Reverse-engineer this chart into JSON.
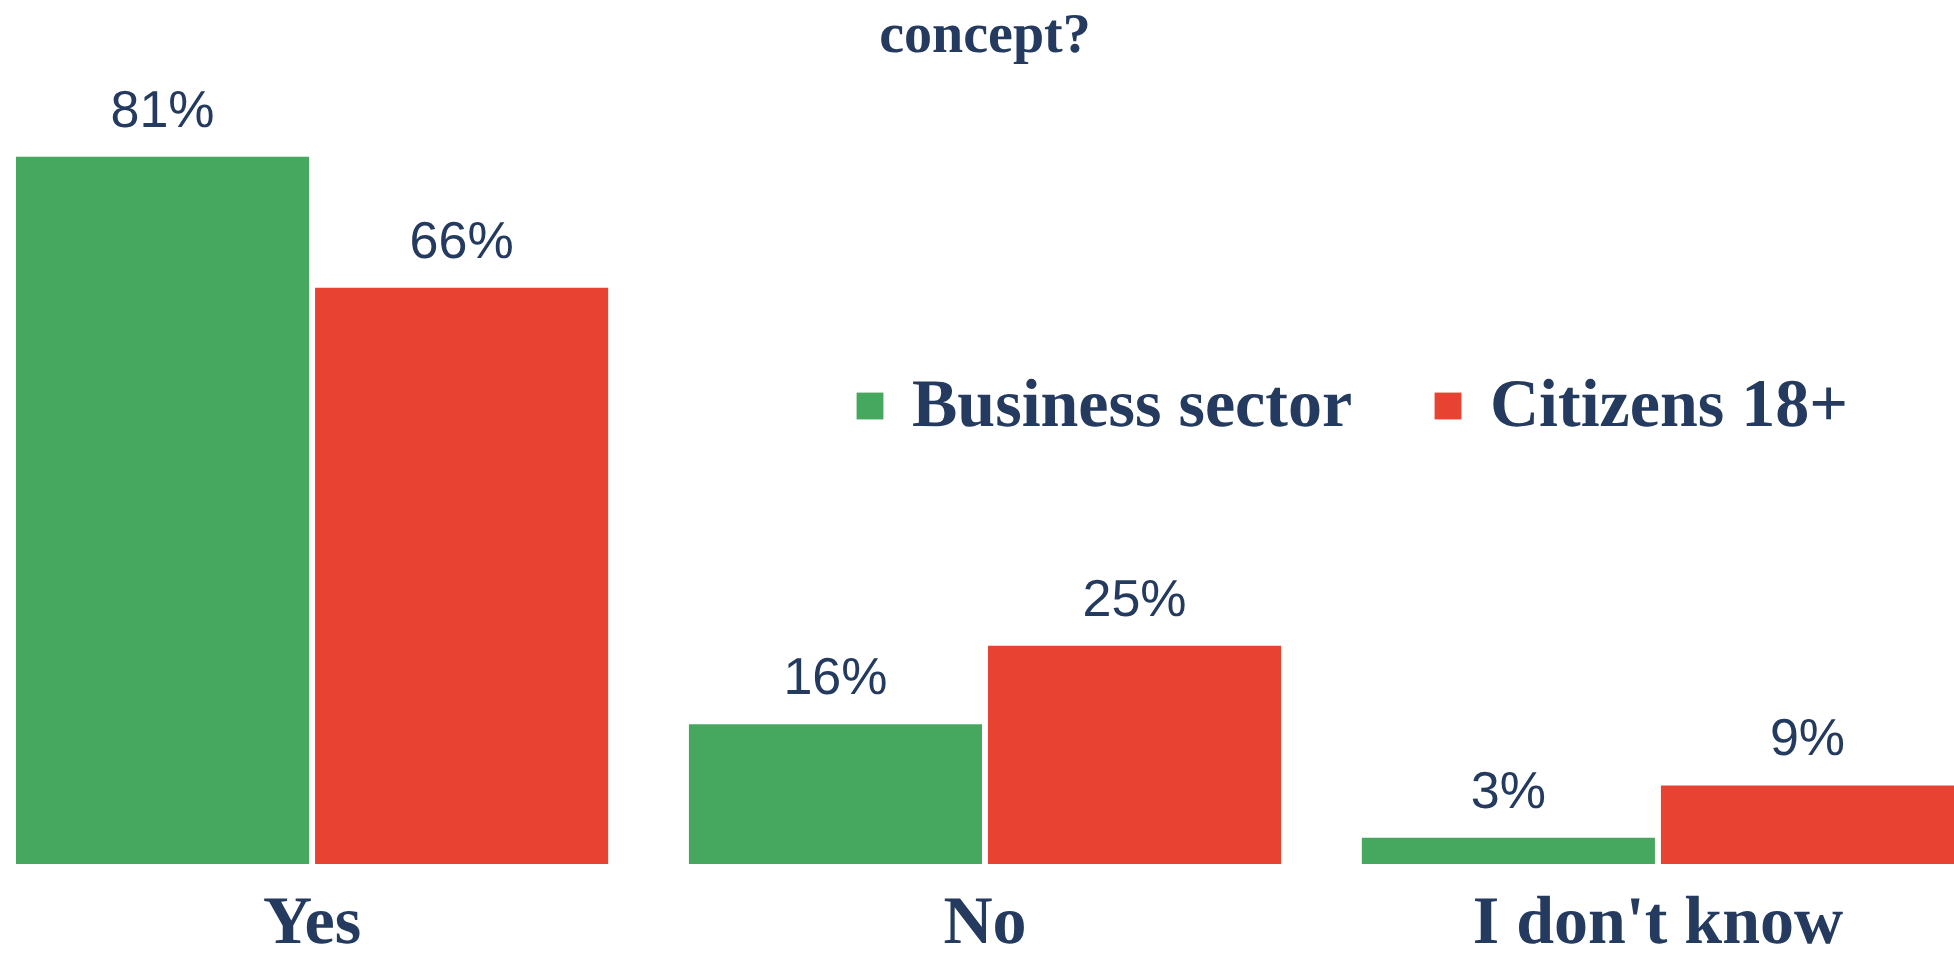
{
  "chart_data": {
    "type": "bar",
    "title": "concept?",
    "categories": [
      "Yes",
      "No",
      "I don't know"
    ],
    "series": [
      {
        "name": "Business sector",
        "color": "#45a85e",
        "values": [
          81,
          16,
          3
        ],
        "value_labels": [
          "81%",
          "16%",
          "3%"
        ]
      },
      {
        "name": "Citizens 18+",
        "color": "#e84233",
        "values": [
          66,
          25,
          9
        ],
        "value_labels": [
          "66%",
          "25%",
          "9%"
        ]
      }
    ],
    "legend": "top right"
  }
}
